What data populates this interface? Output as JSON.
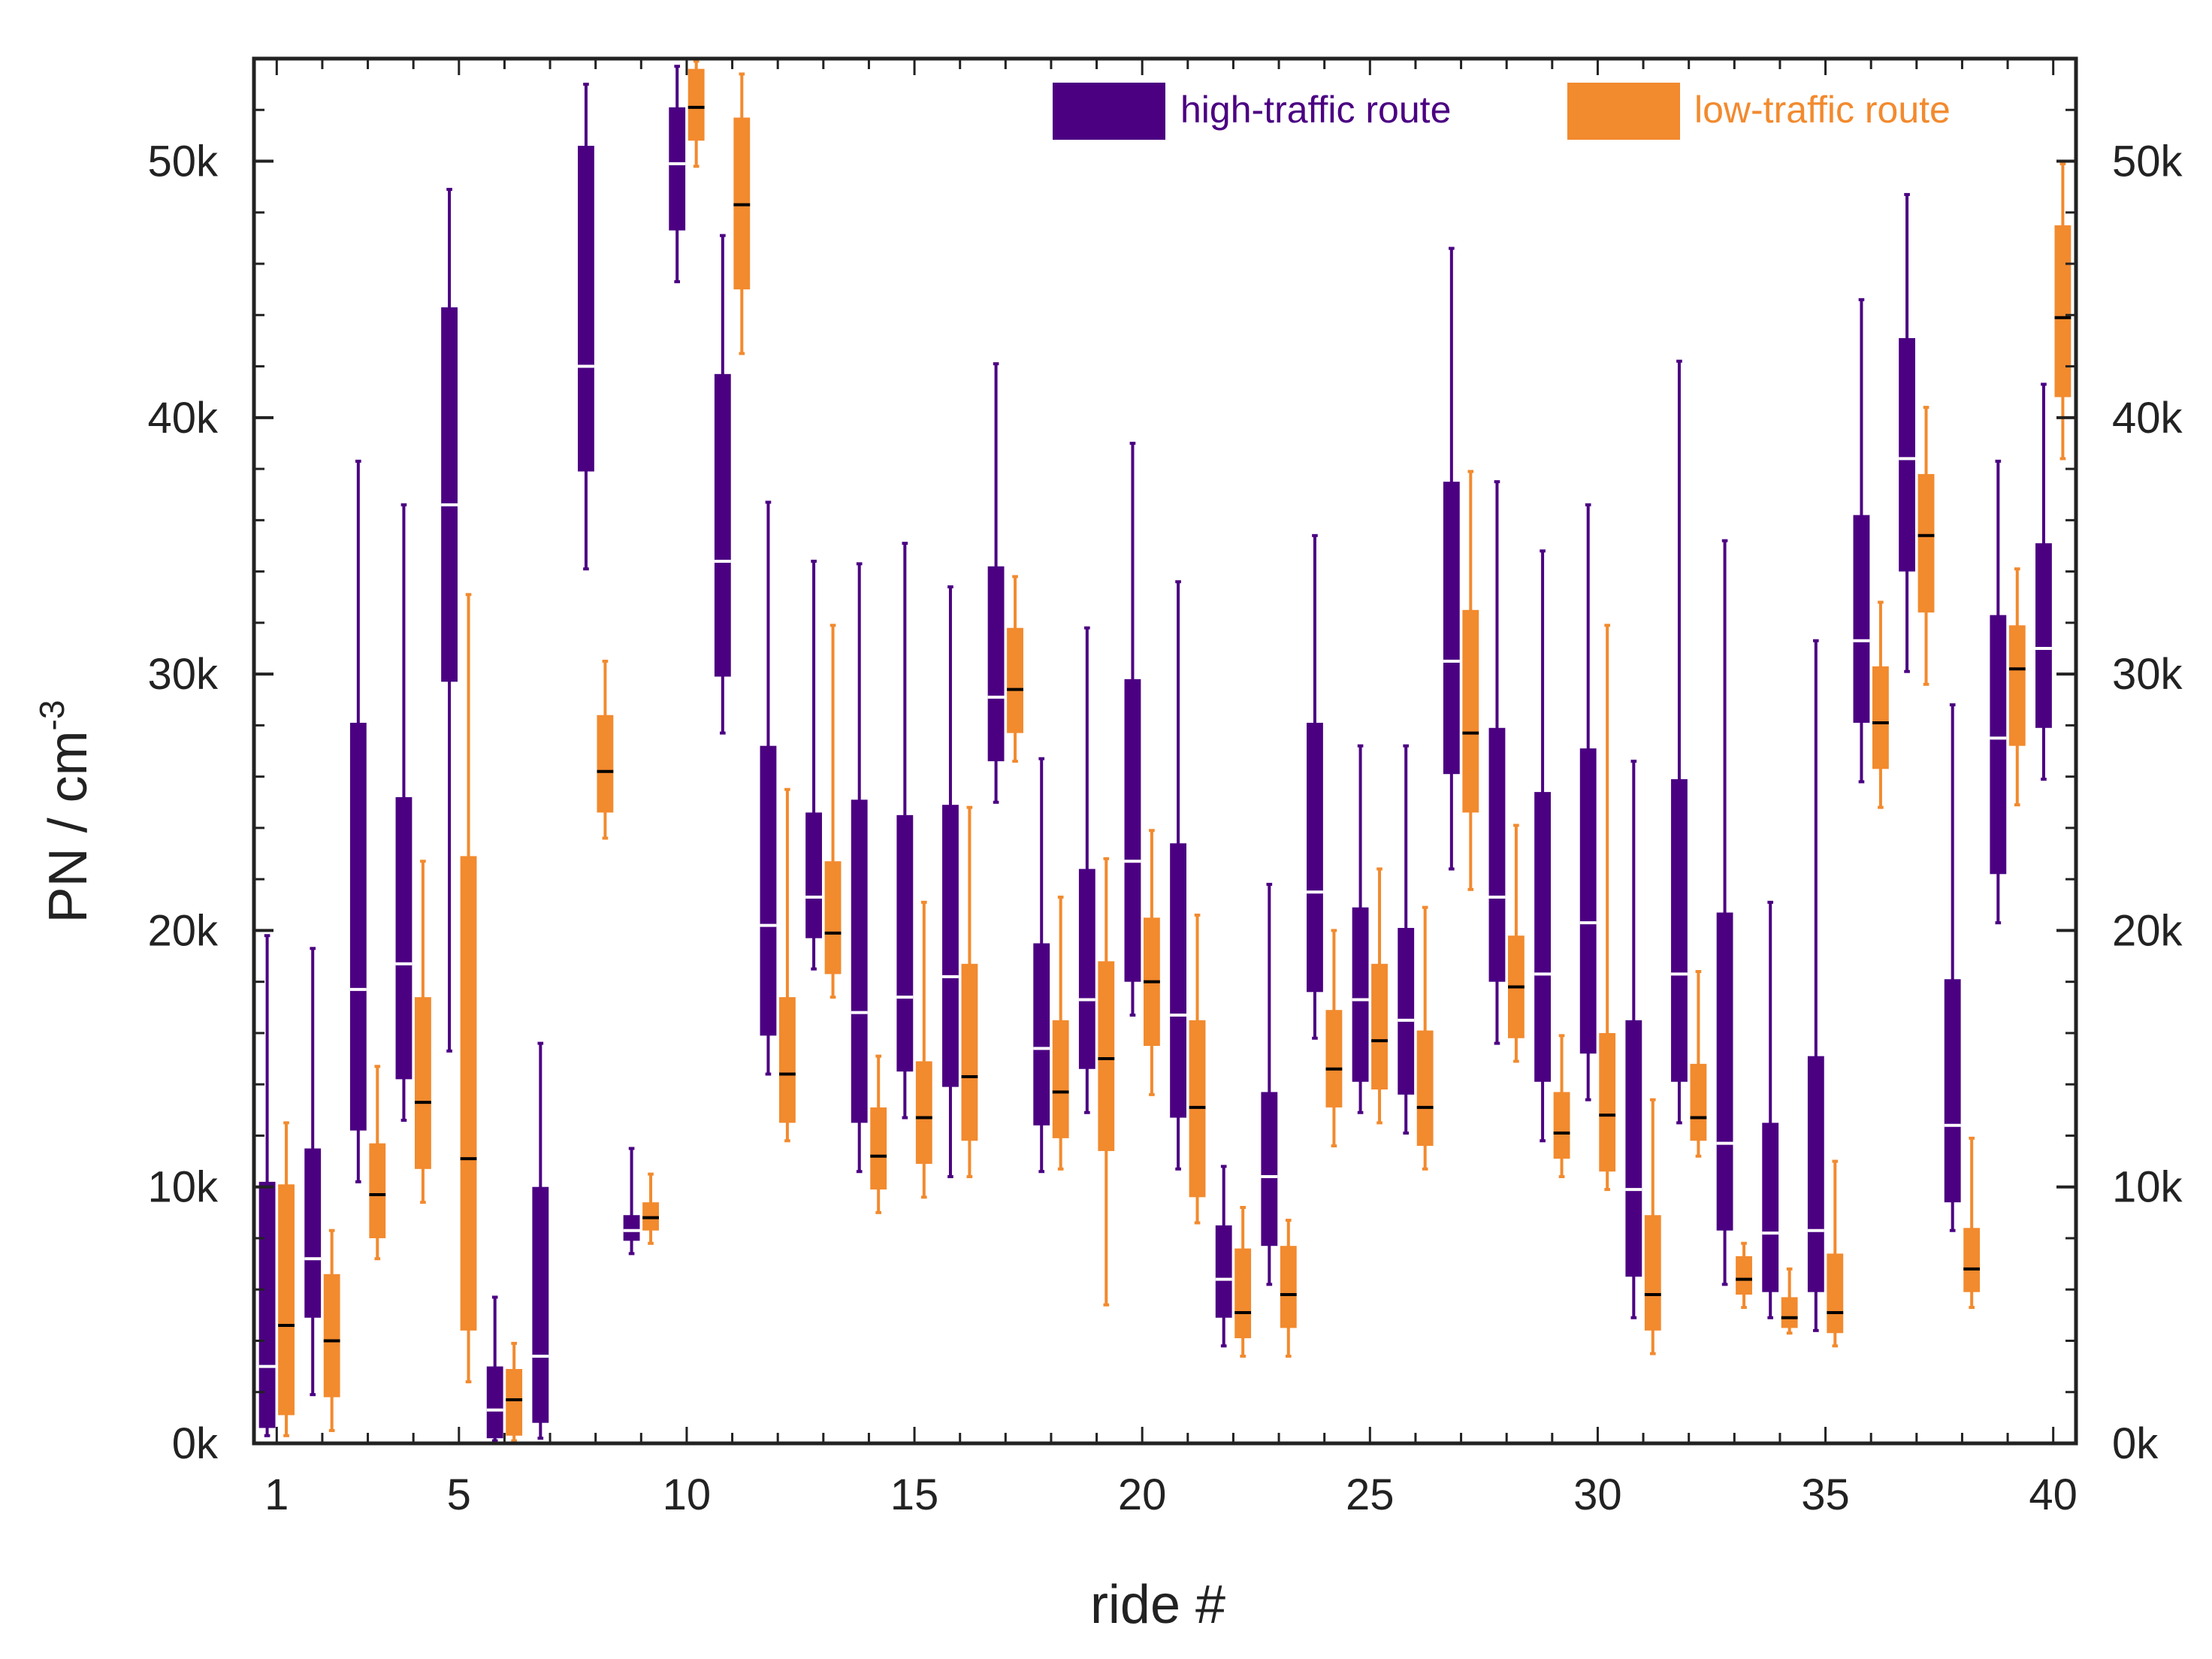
{
  "chart_data": {
    "type": "boxplot",
    "xlabel": "ride #",
    "ylabel": "PN / cm",
    "ylabel_superscript": "-3",
    "ylim": [
      0,
      54000
    ],
    "xlim": [
      0.5,
      40.5
    ],
    "x_tick_labels": [
      "1",
      "5",
      "10",
      "15",
      "20",
      "25",
      "30",
      "35",
      "40"
    ],
    "x_tick_values": [
      1,
      5,
      10,
      15,
      20,
      25,
      30,
      35,
      40
    ],
    "y_tick_labels": [
      "0k",
      "10k",
      "20k",
      "30k",
      "40k",
      "50k"
    ],
    "y_tick_values": [
      0,
      10000,
      20000,
      30000,
      40000,
      50000
    ],
    "legend_position": "top-right",
    "colors": {
      "high": "#4b0082",
      "low": "#f28a2e",
      "high_median": "#ffffff",
      "low_median": "#000000"
    },
    "series": [
      {
        "name": "high-traffic route",
        "key": "high",
        "boxes": [
          {
            "ride": 1,
            "min": 300,
            "q1": 600,
            "median": 3000,
            "q3": 10200,
            "max": 19800
          },
          {
            "ride": 2,
            "min": 1900,
            "q1": 4900,
            "median": 7200,
            "q3": 11500,
            "max": 19300
          },
          {
            "ride": 3,
            "min": 10200,
            "q1": 12200,
            "median": 17700,
            "q3": 28100,
            "max": 38300
          },
          {
            "ride": 4,
            "min": 12600,
            "q1": 14200,
            "median": 18700,
            "q3": 25200,
            "max": 36600
          },
          {
            "ride": 5,
            "min": 15300,
            "q1": 29700,
            "median": 36600,
            "q3": 44300,
            "max": 48900
          },
          {
            "ride": 6,
            "min": 100,
            "q1": 200,
            "median": 1300,
            "q3": 3000,
            "max": 5700
          },
          {
            "ride": 7,
            "min": 200,
            "q1": 800,
            "median": 3400,
            "q3": 10000,
            "max": 15600
          },
          {
            "ride": 8,
            "min": 34100,
            "q1": 37900,
            "median": 42000,
            "q3": 50600,
            "max": 53000
          },
          {
            "ride": 9,
            "min": 7400,
            "q1": 7900,
            "median": 8300,
            "q3": 8900,
            "max": 11500
          },
          {
            "ride": 10,
            "min": 45300,
            "q1": 47300,
            "median": 49900,
            "q3": 52100,
            "max": 53700
          },
          {
            "ride": 11,
            "min": 27700,
            "q1": 29900,
            "median": 34400,
            "q3": 41700,
            "max": 47100
          },
          {
            "ride": 12,
            "min": 14400,
            "q1": 15900,
            "median": 20200,
            "q3": 27200,
            "max": 36700
          },
          {
            "ride": 13,
            "min": 18500,
            "q1": 19700,
            "median": 21300,
            "q3": 24600,
            "max": 34400
          },
          {
            "ride": 14,
            "min": 10600,
            "q1": 12500,
            "median": 16800,
            "q3": 25100,
            "max": 34300
          },
          {
            "ride": 15,
            "min": 12700,
            "q1": 14500,
            "median": 17400,
            "q3": 24500,
            "max": 35100
          },
          {
            "ride": 16,
            "min": 10400,
            "q1": 13900,
            "median": 18200,
            "q3": 24900,
            "max": 33400
          },
          {
            "ride": 17,
            "min": 25000,
            "q1": 26600,
            "median": 29100,
            "q3": 34200,
            "max": 42100
          },
          {
            "ride": 18,
            "min": 10600,
            "q1": 12400,
            "median": 15400,
            "q3": 19500,
            "max": 26700
          },
          {
            "ride": 19,
            "min": 12900,
            "q1": 14600,
            "median": 17300,
            "q3": 22400,
            "max": 31800
          },
          {
            "ride": 20,
            "min": 16700,
            "q1": 18000,
            "median": 22700,
            "q3": 29800,
            "max": 39000
          },
          {
            "ride": 21,
            "min": 10700,
            "q1": 12700,
            "median": 16700,
            "q3": 23400,
            "max": 33600
          },
          {
            "ride": 22,
            "min": 3800,
            "q1": 4900,
            "median": 6400,
            "q3": 8500,
            "max": 10800
          },
          {
            "ride": 23,
            "min": 6200,
            "q1": 7700,
            "median": 10400,
            "q3": 13700,
            "max": 21800
          },
          {
            "ride": 24,
            "min": 15800,
            "q1": 17600,
            "median": 21500,
            "q3": 28100,
            "max": 35400
          },
          {
            "ride": 25,
            "min": 12900,
            "q1": 14100,
            "median": 17300,
            "q3": 20900,
            "max": 27200
          },
          {
            "ride": 26,
            "min": 12100,
            "q1": 13600,
            "median": 16500,
            "q3": 20100,
            "max": 27200
          },
          {
            "ride": 27,
            "min": 22400,
            "q1": 26100,
            "median": 30500,
            "q3": 37500,
            "max": 46600
          },
          {
            "ride": 28,
            "min": 15600,
            "q1": 18000,
            "median": 21300,
            "q3": 27900,
            "max": 37500
          },
          {
            "ride": 29,
            "min": 11800,
            "q1": 14100,
            "median": 18300,
            "q3": 25400,
            "max": 34800
          },
          {
            "ride": 30,
            "min": 13400,
            "q1": 15200,
            "median": 20300,
            "q3": 27100,
            "max": 36600
          },
          {
            "ride": 31,
            "min": 4900,
            "q1": 6500,
            "median": 9900,
            "q3": 16500,
            "max": 26600
          },
          {
            "ride": 32,
            "min": 12500,
            "q1": 14100,
            "median": 18300,
            "q3": 25900,
            "max": 42200
          },
          {
            "ride": 33,
            "min": 6200,
            "q1": 8300,
            "median": 11700,
            "q3": 20700,
            "max": 35200
          },
          {
            "ride": 34,
            "min": 4900,
            "q1": 5900,
            "median": 8200,
            "q3": 12500,
            "max": 21100
          },
          {
            "ride": 35,
            "min": 4400,
            "q1": 5900,
            "median": 8300,
            "q3": 15100,
            "max": 31300
          },
          {
            "ride": 36,
            "min": 25800,
            "q1": 28100,
            "median": 31300,
            "q3": 36200,
            "max": 44600
          },
          {
            "ride": 37,
            "min": 30100,
            "q1": 34000,
            "median": 38400,
            "q3": 43100,
            "max": 48700
          },
          {
            "ride": 38,
            "min": 8300,
            "q1": 9400,
            "median": 12400,
            "q3": 18100,
            "max": 28800
          },
          {
            "ride": 39,
            "min": 20300,
            "q1": 22200,
            "median": 27500,
            "q3": 32300,
            "max": 38300
          },
          {
            "ride": 40,
            "min": 25900,
            "q1": 27900,
            "median": 31000,
            "q3": 35100,
            "max": 41300
          }
        ]
      },
      {
        "name": "low-traffic route",
        "key": "low",
        "boxes": [
          {
            "ride": 1,
            "min": 300,
            "q1": 1100,
            "median": 4600,
            "q3": 10100,
            "max": 12500
          },
          {
            "ride": 2,
            "min": 500,
            "q1": 1800,
            "median": 4000,
            "q3": 6600,
            "max": 8300
          },
          {
            "ride": 3,
            "min": 7200,
            "q1": 8000,
            "median": 9700,
            "q3": 11700,
            "max": 14700
          },
          {
            "ride": 4,
            "min": 9400,
            "q1": 10700,
            "median": 13300,
            "q3": 17400,
            "max": 22700
          },
          {
            "ride": 5,
            "min": 2400,
            "q1": 4400,
            "median": 11100,
            "q3": 22900,
            "max": 33100
          },
          {
            "ride": 6,
            "min": 100,
            "q1": 300,
            "median": 1700,
            "q3": 2900,
            "max": 3900
          },
          {
            "ride": 8,
            "min": 23600,
            "q1": 24600,
            "median": 26200,
            "q3": 28400,
            "max": 30500
          },
          {
            "ride": 9,
            "min": 7800,
            "q1": 8300,
            "median": 8800,
            "q3": 9400,
            "max": 10500
          },
          {
            "ride": 10,
            "min": 49800,
            "q1": 50800,
            "median": 52100,
            "q3": 53600,
            "max": 53900
          },
          {
            "ride": 11,
            "min": 42500,
            "q1": 45000,
            "median": 48300,
            "q3": 51700,
            "max": 53400
          },
          {
            "ride": 12,
            "min": 11800,
            "q1": 12500,
            "median": 14400,
            "q3": 17400,
            "max": 25500
          },
          {
            "ride": 13,
            "min": 17400,
            "q1": 18300,
            "median": 19900,
            "q3": 22700,
            "max": 31900
          },
          {
            "ride": 14,
            "min": 9000,
            "q1": 9900,
            "median": 11200,
            "q3": 13100,
            "max": 15100
          },
          {
            "ride": 15,
            "min": 9600,
            "q1": 10900,
            "median": 12700,
            "q3": 14900,
            "max": 21100
          },
          {
            "ride": 16,
            "min": 10400,
            "q1": 11800,
            "median": 14300,
            "q3": 18700,
            "max": 24800
          },
          {
            "ride": 17,
            "min": 26600,
            "q1": 27700,
            "median": 29400,
            "q3": 31800,
            "max": 33800
          },
          {
            "ride": 18,
            "min": 10700,
            "q1": 11900,
            "median": 13700,
            "q3": 16500,
            "max": 21300
          },
          {
            "ride": 19,
            "min": 5400,
            "q1": 11400,
            "median": 15000,
            "q3": 18800,
            "max": 22800
          },
          {
            "ride": 20,
            "min": 13600,
            "q1": 15500,
            "median": 18000,
            "q3": 20500,
            "max": 23900
          },
          {
            "ride": 21,
            "min": 8600,
            "q1": 9600,
            "median": 13100,
            "q3": 16500,
            "max": 20600
          },
          {
            "ride": 22,
            "min": 3400,
            "q1": 4100,
            "median": 5100,
            "q3": 7600,
            "max": 9200
          },
          {
            "ride": 23,
            "min": 3400,
            "q1": 4500,
            "median": 5800,
            "q3": 7700,
            "max": 8700
          },
          {
            "ride": 24,
            "min": 11600,
            "q1": 13100,
            "median": 14600,
            "q3": 16900,
            "max": 20000
          },
          {
            "ride": 25,
            "min": 12500,
            "q1": 13800,
            "median": 15700,
            "q3": 18700,
            "max": 22400
          },
          {
            "ride": 26,
            "min": 10700,
            "q1": 11600,
            "median": 13100,
            "q3": 16100,
            "max": 20900
          },
          {
            "ride": 27,
            "min": 21600,
            "q1": 24600,
            "median": 27700,
            "q3": 32500,
            "max": 37900
          },
          {
            "ride": 28,
            "min": 14900,
            "q1": 15800,
            "median": 17800,
            "q3": 19800,
            "max": 24100
          },
          {
            "ride": 29,
            "min": 10400,
            "q1": 11100,
            "median": 12100,
            "q3": 13700,
            "max": 15900
          },
          {
            "ride": 30,
            "min": 9900,
            "q1": 10600,
            "median": 12800,
            "q3": 16000,
            "max": 31900
          },
          {
            "ride": 31,
            "min": 3500,
            "q1": 4400,
            "median": 5800,
            "q3": 8900,
            "max": 13400
          },
          {
            "ride": 32,
            "min": 11200,
            "q1": 11800,
            "median": 12700,
            "q3": 14800,
            "max": 18400
          },
          {
            "ride": 33,
            "min": 5300,
            "q1": 5800,
            "median": 6400,
            "q3": 7300,
            "max": 7800
          },
          {
            "ride": 34,
            "min": 4300,
            "q1": 4500,
            "median": 4900,
            "q3": 5700,
            "max": 6800
          },
          {
            "ride": 35,
            "min": 3800,
            "q1": 4300,
            "median": 5100,
            "q3": 7400,
            "max": 11000
          },
          {
            "ride": 36,
            "min": 24800,
            "q1": 26300,
            "median": 28100,
            "q3": 30300,
            "max": 32800
          },
          {
            "ride": 37,
            "min": 29600,
            "q1": 32400,
            "median": 35400,
            "q3": 37800,
            "max": 40400
          },
          {
            "ride": 38,
            "min": 5300,
            "q1": 5900,
            "median": 6800,
            "q3": 8400,
            "max": 11900
          },
          {
            "ride": 39,
            "min": 24900,
            "q1": 27200,
            "median": 30200,
            "q3": 31900,
            "max": 34100
          },
          {
            "ride": 40,
            "min": 38400,
            "q1": 40800,
            "median": 43900,
            "q3": 47500,
            "max": 49900
          }
        ]
      }
    ]
  }
}
